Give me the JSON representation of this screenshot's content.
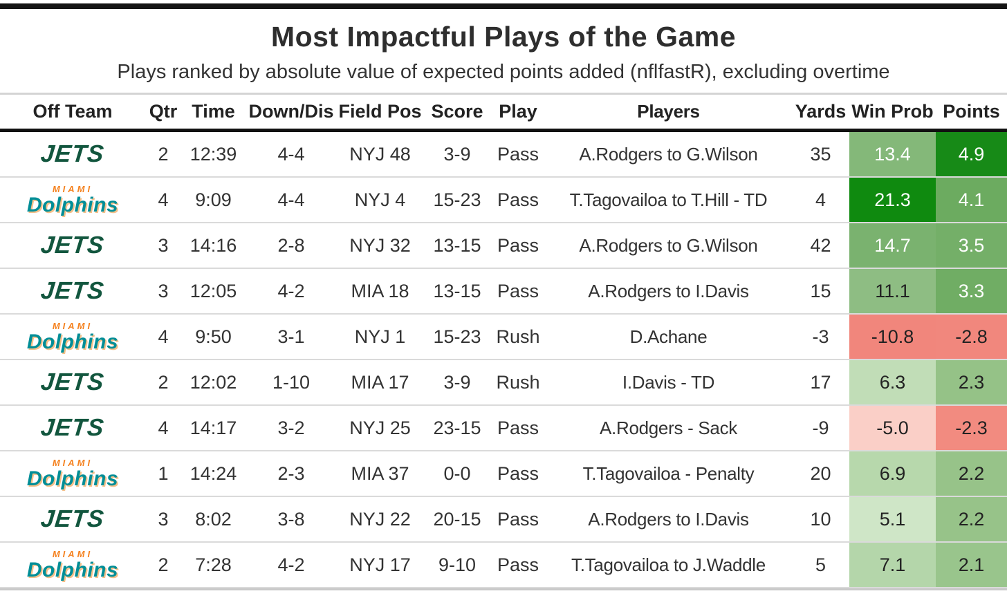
{
  "logos": {
    "jets": {
      "label": "JETS",
      "color": "#12563e"
    },
    "dolphins": {
      "miami_label": "MIAMI",
      "label": "Dolphins",
      "teal": "#008e97",
      "orange": "#f58220",
      "outline": "#f5c08a"
    }
  },
  "column_names": [
    "off-team",
    "qtr",
    "time",
    "down-dis",
    "field-pos",
    "score",
    "play",
    "players",
    "yards",
    "win-prob",
    "points"
  ],
  "chart_data": {
    "type": "table",
    "title": "Most Impactful Plays of the Game",
    "subtitle": "Plays ranked by absolute value of expected points added (nflfastR), excluding overtime",
    "columns": [
      "Off Team",
      "Qtr",
      "Time",
      "Down/Dis",
      "Field Pos",
      "Score",
      "Play",
      "Players",
      "Yards",
      "Win Prob",
      "Points"
    ],
    "rows": [
      {
        "team": "jets",
        "qtr": "2",
        "time": "12:39",
        "down_dis": "4-4",
        "field_pos": "NYJ 48",
        "score": "3-9",
        "play": "Pass",
        "players": "A.Rodgers to G.Wilson",
        "yards": "35",
        "win_prob": "13.4",
        "points": "4.9",
        "win_prob_bg": "#84b879",
        "win_prob_text": "#ffffff",
        "points_bg": "#178a17",
        "points_text": "#ffffff"
      },
      {
        "team": "dolphins",
        "qtr": "4",
        "time": "9:09",
        "down_dis": "4-4",
        "field_pos": "NYJ 4",
        "score": "15-23",
        "play": "Pass",
        "players": "T.Tagovailoa to T.Hill - TD",
        "yards": "4",
        "win_prob": "21.3",
        "points": "4.1",
        "win_prob_bg": "#0f8a0f",
        "win_prob_text": "#ffffff",
        "points_bg": "#6cab60",
        "points_text": "#ffffff"
      },
      {
        "team": "jets",
        "qtr": "3",
        "time": "14:16",
        "down_dis": "2-8",
        "field_pos": "NYJ 32",
        "score": "13-15",
        "play": "Pass",
        "players": "A.Rodgers to G.Wilson",
        "yards": "42",
        "win_prob": "14.7",
        "points": "3.5",
        "win_prob_bg": "#7ab26f",
        "win_prob_text": "#ffffff",
        "points_bg": "#74af68",
        "points_text": "#ffffff"
      },
      {
        "team": "jets",
        "qtr": "3",
        "time": "12:05",
        "down_dis": "4-2",
        "field_pos": "MIA 18",
        "score": "13-15",
        "play": "Pass",
        "players": "A.Rodgers to I.Davis",
        "yards": "15",
        "win_prob": "11.1",
        "points": "3.3",
        "win_prob_bg": "#8ebd83",
        "win_prob_text": "#222222",
        "points_bg": "#70ad64",
        "points_text": "#ffffff"
      },
      {
        "team": "dolphins",
        "qtr": "4",
        "time": "9:50",
        "down_dis": "3-1",
        "field_pos": "NYJ 1",
        "score": "15-23",
        "play": "Rush",
        "players": "D.Achane",
        "yards": "-3",
        "win_prob": "-10.8",
        "points": "-2.8",
        "win_prob_bg": "#f1867c",
        "win_prob_text": "#222222",
        "points_bg": "#f1877d",
        "points_text": "#222222"
      },
      {
        "team": "jets",
        "qtr": "2",
        "time": "12:02",
        "down_dis": "1-10",
        "field_pos": "MIA 17",
        "score": "3-9",
        "play": "Rush",
        "players": "I.Davis - TD",
        "yards": "17",
        "win_prob": "6.3",
        "points": "2.3",
        "win_prob_bg": "#c1ddb7",
        "win_prob_text": "#222222",
        "points_bg": "#95c287",
        "points_text": "#222222"
      },
      {
        "team": "jets",
        "qtr": "4",
        "time": "14:17",
        "down_dis": "3-2",
        "field_pos": "NYJ 25",
        "score": "23-15",
        "play": "Pass",
        "players": "A.Rodgers - Sack",
        "yards": "-9",
        "win_prob": "-5.0",
        "points": "-2.3",
        "win_prob_bg": "#facfc7",
        "win_prob_text": "#222222",
        "points_bg": "#f28b80",
        "points_text": "#222222"
      },
      {
        "team": "dolphins",
        "qtr": "1",
        "time": "14:24",
        "down_dis": "2-3",
        "field_pos": "MIA 37",
        "score": "0-0",
        "play": "Pass",
        "players": "T.Tagovailoa - Penalty",
        "yards": "20",
        "win_prob": "6.9",
        "points": "2.2",
        "win_prob_bg": "#b7d8ac",
        "win_prob_text": "#222222",
        "points_bg": "#97c389",
        "points_text": "#222222"
      },
      {
        "team": "jets",
        "qtr": "3",
        "time": "8:02",
        "down_dis": "3-8",
        "field_pos": "NYJ 22",
        "score": "20-15",
        "play": "Pass",
        "players": "A.Rodgers to I.Davis",
        "yards": "10",
        "win_prob": "5.1",
        "points": "2.2",
        "win_prob_bg": "#cfe6c7",
        "win_prob_text": "#222222",
        "points_bg": "#97c389",
        "points_text": "#222222"
      },
      {
        "team": "dolphins",
        "qtr": "2",
        "time": "7:28",
        "down_dis": "4-2",
        "field_pos": "NYJ 17",
        "score": "9-10",
        "play": "Pass",
        "players": "T.Tagovailoa to J.Waddle",
        "yards": "5",
        "win_prob": "7.1",
        "points": "2.1",
        "win_prob_bg": "#b4d6aa",
        "win_prob_text": "#222222",
        "points_bg": "#99c58c",
        "points_text": "#222222"
      }
    ]
  }
}
